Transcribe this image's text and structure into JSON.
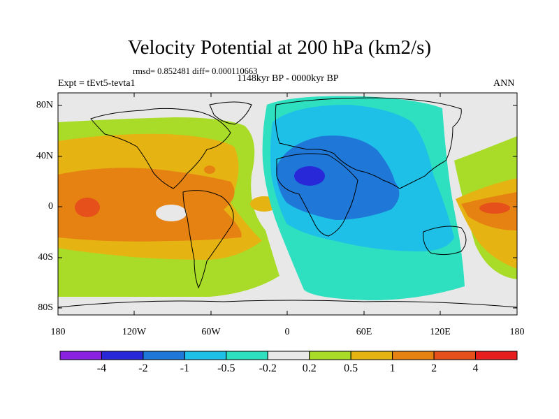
{
  "title": "Velocity Potential at 200 hPa (km2/s)",
  "stats_line": "rmsd= 0.852481 diff= 0.000110663",
  "period_line": "1148kyr BP - 0000kyr BP",
  "experiment": "Expt = tEvt5-tevta1",
  "season": "ANN",
  "lat_labels": [
    "80N",
    "40N",
    "0",
    "40S",
    "80S"
  ],
  "lon_labels": [
    "180",
    "120W",
    "60W",
    "0",
    "60E",
    "120E",
    "180"
  ],
  "colorbar": {
    "colors": [
      "#8a20e0",
      "#2828d8",
      "#1f78d8",
      "#1ec0e8",
      "#2ee0c0",
      "#e8e8e8",
      "#a8dc28",
      "#e6b412",
      "#e68212",
      "#e6501a",
      "#e61e1e"
    ],
    "labels": [
      "-4",
      "-2",
      "-1",
      "-0.5",
      "-0.2",
      "0.2",
      "0.5",
      "1",
      "2",
      "4"
    ]
  }
}
